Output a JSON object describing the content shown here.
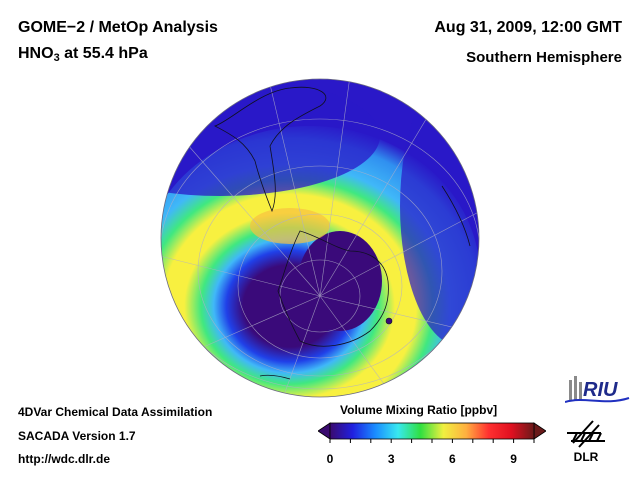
{
  "header": {
    "title_line1": "GOME−2 / MetOp Analysis",
    "title_line2_prefix": "HNO",
    "title_line2_sub": "3",
    "title_line2_suffix": " at 55.4 hPa",
    "date": "Aug 31, 2009, 12:00 GMT",
    "region": "Southern Hemisphere"
  },
  "footer": {
    "line1": "4DVar Chemical Data Assimilation",
    "line2": "SACADA Version 1.7",
    "line3": "http://wdc.dlr.de"
  },
  "colorbar": {
    "title": "Volume Mixing Ratio [ppbv]",
    "ticks": [
      "0",
      "3",
      "6",
      "9"
    ],
    "range": [
      0,
      10
    ],
    "colors": [
      "#3a0a6e",
      "#2020e0",
      "#1a8cff",
      "#38e8f0",
      "#30e040",
      "#f0f040",
      "#ffb040",
      "#ff3030",
      "#e01020",
      "#6a1a1a"
    ]
  },
  "map": {
    "projection": "orthographic, south pole",
    "background": "#2a18c8",
    "field_colors": {
      "low": "#3a0a7a",
      "blue": "#2040e8",
      "cyan": "#40b8f8",
      "green": "#40e880",
      "yellow": "#f8f040",
      "orange": "#f8c040"
    }
  },
  "logos": {
    "riu": "RIU",
    "dlr": "DLR"
  }
}
